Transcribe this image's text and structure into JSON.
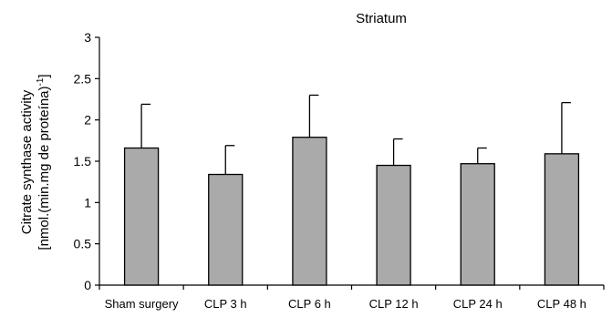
{
  "chart_data": {
    "type": "bar",
    "title": "Striatum",
    "ylabel_line1": "Citrate synthase activity",
    "ylabel_line2": "[nmol.(min.mg de proteína)",
    "ylabel_sup": "-1",
    "ylabel_close": "]",
    "categories": [
      "Sham surgery",
      "CLP 3 h",
      "CLP 6 h",
      "CLP 12 h",
      "CLP 24 h",
      "CLP 48 h"
    ],
    "values": [
      1.66,
      1.34,
      1.79,
      1.45,
      1.47,
      1.59
    ],
    "errors": [
      0.53,
      0.35,
      0.51,
      0.32,
      0.19,
      0.62
    ],
    "ylim": [
      0,
      3
    ],
    "yticks": [
      "0",
      "0.5",
      "1",
      "1.5",
      "2",
      "2.5",
      "3"
    ],
    "bar_color": "#aaaaaa",
    "grid": false,
    "legend": "none"
  }
}
